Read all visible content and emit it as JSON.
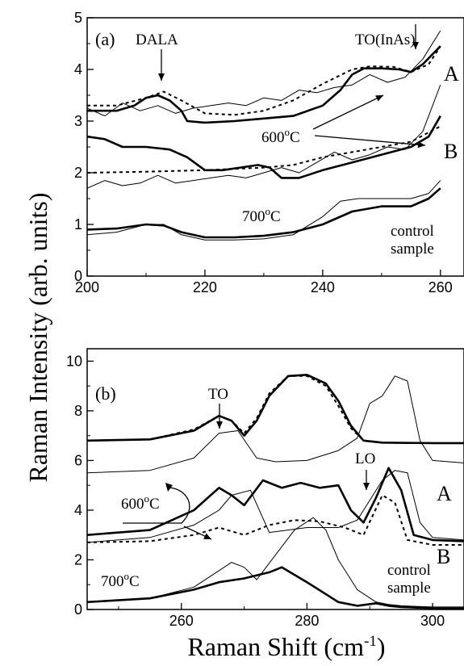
{
  "chart_data": [
    {
      "type": "line",
      "panel_label": "(a)",
      "xlim": [
        200,
        264
      ],
      "ylim": [
        0,
        5
      ],
      "x_ticks": [
        "200",
        "220",
        "240",
        "260"
      ],
      "y_ticks": [
        "0",
        "1",
        "2",
        "3",
        "4",
        "5"
      ],
      "annotations": {
        "dala": "DALA",
        "to_inas": "TO(InAs)",
        "temp_600": "600°C",
        "temp_700": "700°C",
        "control_1": "control",
        "control_2": "sample",
        "label_a": "A",
        "label_b": "B"
      },
      "series": [
        {
          "style": "thick",
          "x": [
            200,
            205,
            208,
            210,
            212,
            214,
            216,
            217,
            220,
            225,
            230,
            235,
            240,
            243,
            245,
            247,
            250,
            253,
            255,
            257,
            260
          ],
          "y": [
            3.2,
            3.2,
            3.3,
            3.45,
            3.5,
            3.4,
            3.2,
            3.0,
            2.97,
            3.0,
            3.05,
            3.1,
            3.3,
            3.6,
            3.9,
            4.02,
            4.02,
            4.0,
            3.95,
            4.1,
            4.45
          ]
        },
        {
          "style": "dashed",
          "x": [
            200,
            205,
            210,
            213,
            216,
            220,
            225,
            230,
            235,
            240,
            245,
            248,
            252,
            255,
            258,
            260
          ],
          "y": [
            3.3,
            3.3,
            3.45,
            3.57,
            3.4,
            3.15,
            3.12,
            3.2,
            3.4,
            3.72,
            4.0,
            4.06,
            4.05,
            3.95,
            4.1,
            4.45
          ]
        },
        {
          "style": "thin",
          "x": [
            200,
            203,
            206,
            209,
            212,
            215,
            218,
            221,
            224,
            227,
            230,
            233,
            236,
            239,
            242,
            245,
            248,
            251,
            254,
            257,
            260
          ],
          "y": [
            3.25,
            3.1,
            3.35,
            3.2,
            3.3,
            3.15,
            3.25,
            3.3,
            3.35,
            3.3,
            3.45,
            3.4,
            3.6,
            3.55,
            3.65,
            3.7,
            3.9,
            3.75,
            3.85,
            4.2,
            4.75
          ]
        },
        {
          "style": "thick",
          "x": [
            200,
            203,
            206,
            210,
            214,
            217,
            220,
            223,
            226,
            229,
            231,
            233,
            236,
            240,
            245,
            250,
            255,
            258,
            260
          ],
          "y": [
            2.7,
            2.65,
            2.5,
            2.5,
            2.45,
            2.3,
            2.05,
            2.05,
            2.1,
            2.15,
            2.1,
            1.9,
            1.9,
            2.05,
            2.2,
            2.35,
            2.5,
            2.7,
            3.1
          ]
        },
        {
          "style": "dashed",
          "x": [
            200,
            210,
            220,
            230,
            235,
            240,
            245,
            250,
            255,
            260
          ],
          "y": [
            2.0,
            2.02,
            2.05,
            2.1,
            2.15,
            2.3,
            2.4,
            2.5,
            2.6,
            2.9
          ]
        },
        {
          "style": "thin",
          "x": [
            200,
            203,
            206,
            209,
            212,
            215,
            218,
            221,
            224,
            227,
            230,
            233,
            236,
            239,
            242,
            245,
            248,
            251,
            254,
            257,
            260
          ],
          "y": [
            1.7,
            1.85,
            1.75,
            1.8,
            1.95,
            1.8,
            1.85,
            1.9,
            1.95,
            1.9,
            2.0,
            2.1,
            2.0,
            2.2,
            2.4,
            2.25,
            2.35,
            2.5,
            2.45,
            2.8,
            3.7
          ]
        },
        {
          "style": "thick",
          "x": [
            200,
            205,
            210,
            213,
            216,
            220,
            225,
            230,
            235,
            240,
            245,
            250,
            255,
            258,
            260
          ],
          "y": [
            0.9,
            0.92,
            1.0,
            0.98,
            0.85,
            0.75,
            0.75,
            0.78,
            0.85,
            1.0,
            1.25,
            1.35,
            1.35,
            1.5,
            1.7
          ]
        },
        {
          "style": "thin",
          "x": [
            200,
            205,
            210,
            213,
            216,
            220,
            225,
            230,
            235,
            240,
            243,
            246,
            250,
            255,
            258,
            260
          ],
          "y": [
            0.8,
            0.85,
            1.0,
            1.0,
            0.8,
            0.7,
            0.7,
            0.72,
            0.8,
            1.15,
            1.45,
            1.5,
            1.5,
            1.5,
            1.6,
            1.85
          ]
        }
      ]
    },
    {
      "type": "line",
      "panel_label": "(b)",
      "xlim": [
        245,
        305
      ],
      "ylim": [
        0,
        10.5
      ],
      "x_ticks": [
        "260",
        "280",
        "300"
      ],
      "y_ticks": [
        "0",
        "2",
        "4",
        "6",
        "8",
        "10"
      ],
      "annotations": {
        "to": "TO",
        "lo": "LO",
        "temp_600": "600°C",
        "temp_700": "700°C",
        "control_1": "control",
        "control_2": "sample",
        "label_a": "A",
        "label_b": "B"
      },
      "series": [
        {
          "style": "thick",
          "x": [
            245,
            255,
            262,
            266,
            268,
            270,
            272,
            274,
            277,
            280,
            283,
            285,
            287,
            289,
            292,
            300,
            305
          ],
          "y": [
            6.8,
            6.85,
            7.2,
            7.8,
            7.6,
            7.0,
            7.6,
            8.6,
            9.4,
            9.45,
            9.1,
            8.4,
            7.4,
            6.8,
            6.72,
            6.7,
            6.7
          ]
        },
        {
          "style": "dashed",
          "x": [
            245,
            255,
            262,
            266,
            268,
            270,
            272,
            274,
            277,
            280,
            283,
            285,
            287,
            289,
            292,
            300,
            305
          ],
          "y": [
            6.8,
            6.85,
            7.25,
            7.8,
            7.6,
            7.1,
            7.7,
            8.7,
            9.4,
            9.4,
            9.0,
            8.2,
            7.3,
            6.8,
            6.72,
            6.7,
            6.7
          ]
        },
        {
          "style": "thin",
          "x": [
            245,
            255,
            262,
            266,
            269,
            272,
            275,
            280,
            285,
            288,
            290,
            292,
            294,
            296,
            298,
            300,
            305
          ],
          "y": [
            5.5,
            5.6,
            6.1,
            7.1,
            7.2,
            6.1,
            5.95,
            6.0,
            6.4,
            6.9,
            8.3,
            8.6,
            9.4,
            9.2,
            6.8,
            6.0,
            5.9
          ]
        },
        {
          "style": "thick",
          "x": [
            245,
            255,
            262,
            266,
            268,
            270,
            273,
            276,
            279,
            282,
            285,
            287,
            289,
            291,
            293,
            295,
            297,
            300,
            305
          ],
          "y": [
            3.0,
            3.2,
            4.0,
            4.9,
            4.6,
            4.2,
            5.2,
            4.9,
            5.1,
            4.9,
            5.0,
            4.0,
            3.5,
            4.5,
            5.7,
            4.8,
            3.0,
            2.8,
            2.75
          ]
        },
        {
          "style": "dashed",
          "x": [
            245,
            255,
            262,
            266,
            270,
            274,
            278,
            282,
            286,
            289,
            292,
            294,
            296,
            300,
            305
          ],
          "y": [
            2.7,
            2.75,
            3.0,
            3.3,
            3.0,
            3.4,
            3.6,
            3.55,
            3.3,
            3.0,
            4.6,
            4.3,
            2.8,
            2.6,
            2.6
          ]
        },
        {
          "style": "thin",
          "x": [
            245,
            255,
            262,
            266,
            268,
            271,
            274,
            280,
            285,
            288,
            290,
            292,
            294,
            296,
            298,
            300,
            305
          ],
          "y": [
            2.7,
            2.9,
            3.4,
            4.0,
            4.6,
            4.8,
            3.1,
            3.3,
            3.3,
            3.6,
            4.4,
            5.2,
            5.6,
            5.5,
            3.5,
            2.9,
            2.8
          ]
        },
        {
          "style": "thick",
          "x": [
            245,
            255,
            262,
            266,
            270,
            274,
            276,
            280,
            285,
            288,
            291,
            293,
            295,
            300,
            305
          ],
          "y": [
            0.3,
            0.45,
            0.8,
            1.1,
            1.25,
            1.5,
            1.7,
            1.1,
            0.3,
            0.15,
            0.25,
            0.15,
            0.1,
            0.05,
            0.05
          ]
        },
        {
          "style": "thin",
          "x": [
            245,
            255,
            262,
            265,
            268,
            270,
            272,
            275,
            278,
            281,
            283,
            285,
            288,
            291,
            293,
            295,
            300,
            305
          ],
          "y": [
            0.3,
            0.45,
            0.9,
            1.4,
            1.9,
            1.7,
            1.2,
            2.2,
            3.2,
            3.7,
            3.2,
            2.0,
            0.8,
            0.3,
            0.2,
            0.15,
            0.1,
            0.1
          ]
        }
      ]
    }
  ],
  "shared_labels": {
    "ylabel": "Raman Intensity (arb. units)",
    "xlabel_prefix": "Raman Shift (cm",
    "xlabel_exp": "-1",
    "xlabel_suffix": ")"
  }
}
